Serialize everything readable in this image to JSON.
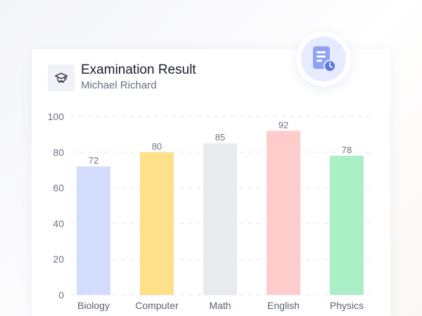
{
  "header": {
    "title": "Examination Result",
    "subtitle": "Michael Richard",
    "icon": "graduation-cap-icon"
  },
  "badge": {
    "icon": "report-clock-icon",
    "color": "#8fa2f5"
  },
  "chart_data": {
    "type": "bar",
    "title": "Examination Result",
    "subtitle": "Michael Richard",
    "xlabel": "",
    "ylabel": "",
    "categories": [
      "Biology",
      "Computer",
      "Math",
      "English",
      "Physics"
    ],
    "values": [
      72,
      80,
      85,
      92,
      78
    ],
    "colors": [
      "#d3dcfd",
      "#fedf8a",
      "#e9eaee",
      "#ffcccc",
      "#abefc6"
    ],
    "ylim": [
      0,
      100
    ],
    "yticks": [
      0,
      20,
      40,
      60,
      80,
      100
    ],
    "grid": true,
    "legend": "none"
  }
}
